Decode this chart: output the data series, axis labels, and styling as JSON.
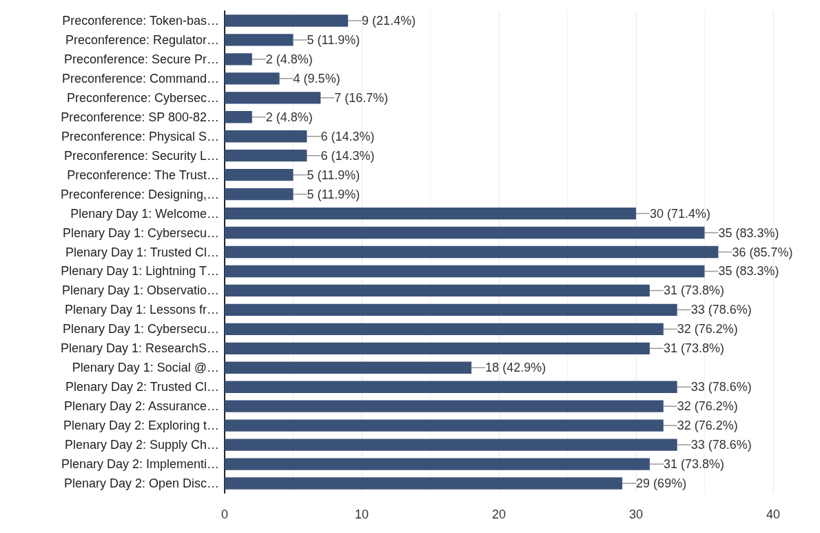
{
  "chart_data": {
    "type": "bar",
    "orientation": "horizontal",
    "categories": [
      "Preconference: Token-bas…",
      "Preconference: Regulator…",
      "Preconference: Secure Pr…",
      "Preconference: Command…",
      "Preconference: Cybersec…",
      "Preconference: SP 800-82…",
      "Preconference: Physical S…",
      "Preconference: Security L…",
      "Preconference: The Trust…",
      "Preconference: Designing,…",
      "Plenary Day 1: Welcome…",
      "Plenary Day 1: Cybersecu…",
      "Plenary Day 1: Trusted Cl…",
      "Plenary Day 1: Lightning T…",
      "Plenary Day 1: Observatio…",
      "Plenary Day 1: Lessons fr…",
      "Plenary Day 1: Cybersecu…",
      "Plenary Day 1: ResearchS…",
      "Plenary Day 1: Social @…",
      "Plenary Day 2: Trusted Cl…",
      "Plenary Day 2: Assurance…",
      "Plenary Day 2: Exploring t…",
      "Plenary Day 2: Supply Ch…",
      "Plenary Day 2: Implementi…",
      "Plenary Day 2: Open Disc…"
    ],
    "values": [
      9,
      5,
      2,
      4,
      7,
      2,
      6,
      6,
      5,
      5,
      30,
      35,
      36,
      35,
      31,
      33,
      32,
      31,
      18,
      33,
      32,
      32,
      33,
      31,
      29
    ],
    "value_labels": [
      "9 (21.4%)",
      "5 (11.9%)",
      "2 (4.8%)",
      "4 (9.5%)",
      "7 (16.7%)",
      "2 (4.8%)",
      "6 (14.3%)",
      "6 (14.3%)",
      "5 (11.9%)",
      "5 (11.9%)",
      "30 (71.4%)",
      "35 (83.3%)",
      "36 (85.7%)",
      "35 (83.3%)",
      "31 (73.8%)",
      "33 (78.6%)",
      "32 (76.2%)",
      "31 (73.8%)",
      "18 (42.9%)",
      "33 (78.6%)",
      "32 (76.2%)",
      "32 (76.2%)",
      "33 (78.6%)",
      "31 (73.8%)",
      "29 (69%)"
    ],
    "color": "#3b5278",
    "xlim": [
      0,
      40
    ],
    "xticks": [
      0,
      10,
      20,
      30,
      40
    ],
    "grid": "x"
  }
}
